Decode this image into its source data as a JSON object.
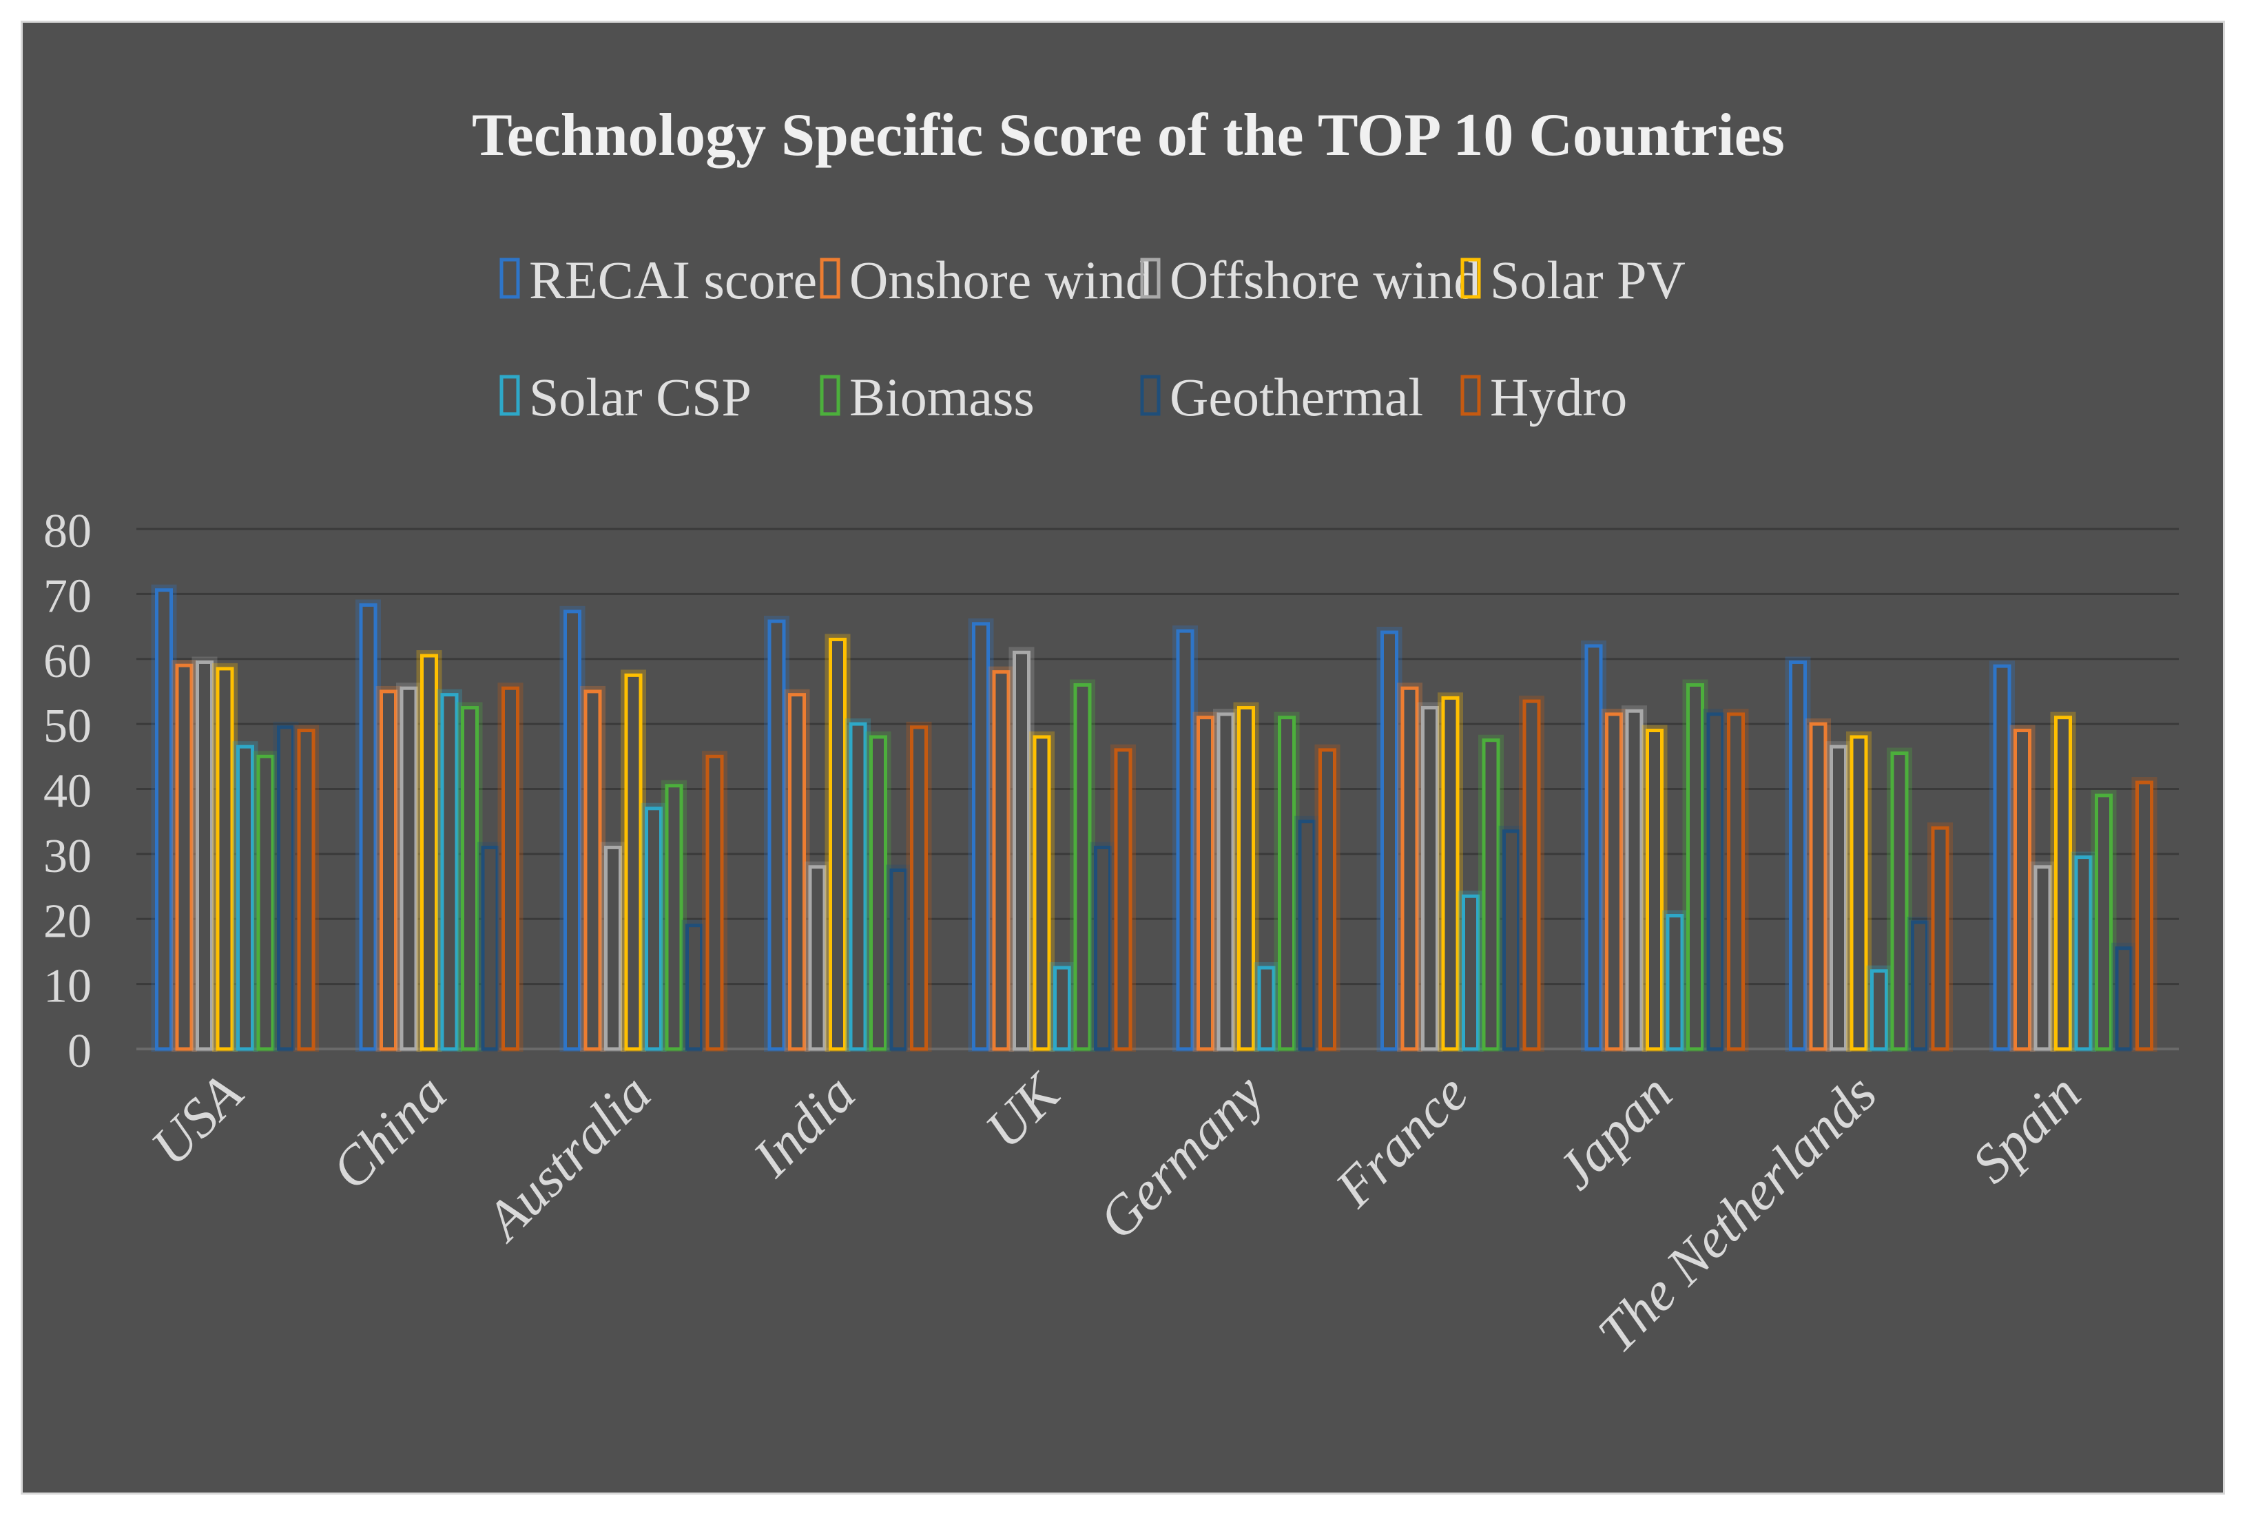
{
  "chart_data": {
    "type": "bar",
    "title": "Technology Specific Score of the TOP 10 Countries",
    "xlabel": "",
    "ylabel": "",
    "ylim": [
      0,
      80
    ],
    "yticks": [
      0,
      10,
      20,
      30,
      40,
      50,
      60,
      70,
      80
    ],
    "grid": true,
    "legend_position": "top-center",
    "categories": [
      "USA",
      "China",
      "Australia",
      "India",
      "UK",
      "Germany",
      "France",
      "Japan",
      "The Netherlands",
      "Spain"
    ],
    "series": [
      {
        "name": "RECAI score",
        "color": "#2e75c8",
        "values": [
          70.6,
          68.3,
          67.3,
          65.8,
          65.4,
          64.3,
          64.1,
          62.0,
          59.5,
          58.9
        ]
      },
      {
        "name": "Onshore wind",
        "color": "#ed7d31",
        "values": [
          59,
          55,
          55,
          54.5,
          58,
          51,
          55.5,
          51.5,
          50,
          49
        ]
      },
      {
        "name": "Offshore wind",
        "color": "#a9a9a9",
        "values": [
          59.5,
          55.5,
          31,
          28,
          61,
          51.5,
          52.5,
          52,
          46.5,
          28
        ]
      },
      {
        "name": "Solar PV",
        "color": "#ffc000",
        "values": [
          58.5,
          60.5,
          57.5,
          63,
          48,
          52.5,
          54,
          49,
          48,
          51
        ]
      },
      {
        "name": "Solar CSP",
        "color": "#2ea8c8",
        "values": [
          46.5,
          54.5,
          37,
          50,
          12.5,
          12.5,
          23.5,
          20.5,
          12,
          29.5
        ]
      },
      {
        "name": "Biomass",
        "color": "#4caf3c",
        "values": [
          45,
          52.5,
          40.5,
          48,
          56,
          51,
          47.5,
          56,
          45.5,
          39
        ]
      },
      {
        "name": "Geothermal",
        "color": "#1f4e79",
        "values": [
          49.5,
          31,
          19,
          27.5,
          31,
          35,
          33.5,
          51.5,
          19.5,
          15.5
        ]
      },
      {
        "name": "Hydro",
        "color": "#c55a11",
        "values": [
          49,
          55.5,
          45,
          49.5,
          46,
          46,
          53.5,
          51.5,
          34,
          41
        ]
      }
    ]
  }
}
